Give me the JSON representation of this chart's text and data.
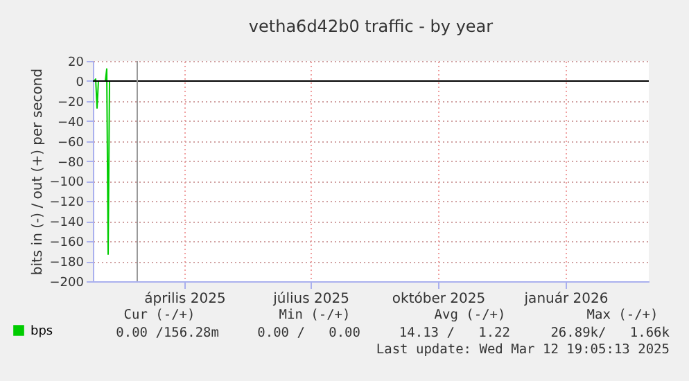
{
  "chart_data": {
    "type": "line",
    "title": "vetha6d42b0 traffic - by year",
    "ylabel": "bits in (-) / out (+) per second",
    "series": [
      {
        "name": "bps",
        "color": "#00cc00",
        "x": [
          "2025-02-09",
          "2025-02-10",
          "2025-02-11",
          "2025-02-12",
          "2025-02-17",
          "2025-02-18",
          "2025-02-19",
          "2025-02-20"
        ],
        "values": [
          0,
          2,
          -27,
          0,
          0,
          12,
          -173,
          0
        ]
      }
    ],
    "xlim": [
      "2025-02-08",
      "2026-03-16"
    ],
    "xticks": [
      {
        "value": "2025-04-15",
        "label": "április 2025"
      },
      {
        "value": "2025-07-15",
        "label": "július 2025"
      },
      {
        "value": "2025-10-15",
        "label": "október 2025"
      },
      {
        "value": "2026-01-15",
        "label": "január 2026"
      }
    ],
    "ylim": [
      -200,
      20
    ],
    "yticks": [
      -200,
      -180,
      -160,
      -140,
      -120,
      -100,
      -80,
      -60,
      -40,
      -20,
      0,
      20
    ],
    "ref_lines": [
      {
        "axis": "y",
        "value": 0,
        "color": "#000000"
      },
      {
        "axis": "x",
        "value": "2025-03-12",
        "color": "#999999"
      }
    ],
    "grid": true,
    "legend": "bottom left",
    "annotations": [
      "Cur (-/+)",
      "Min (-/+)",
      "Avg (-/+)",
      "Max (-/+)",
      "0.00 /156.28m",
      "0.00 /   0.00",
      "14.13 /   1.22",
      "26.89k/   1.66k",
      "Last update: Wed Mar 12 19:05:13 2025"
    ]
  }
}
